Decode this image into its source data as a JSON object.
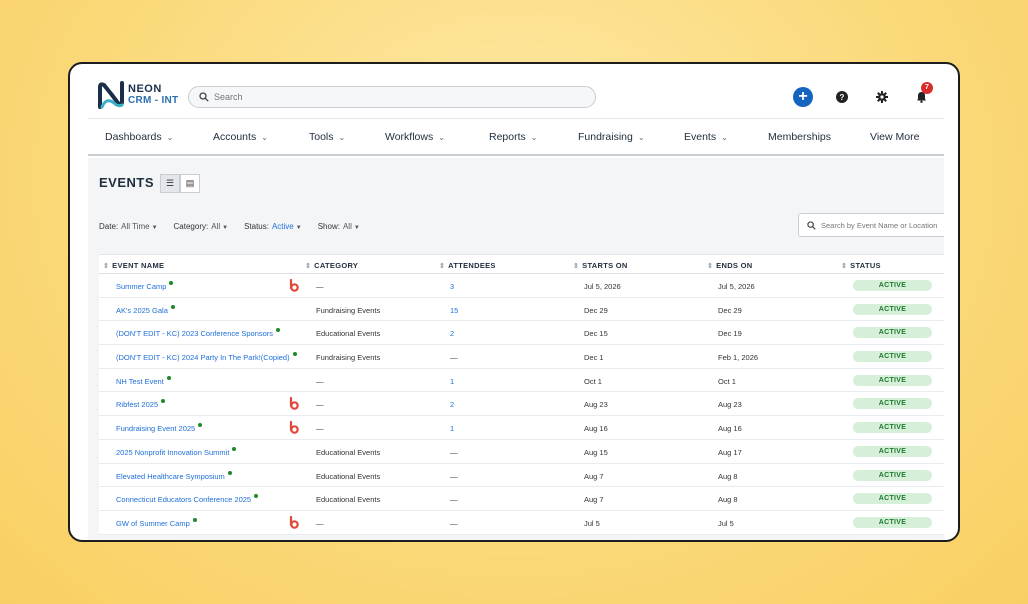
{
  "brand": {
    "line1": "NEON",
    "line2": "CRM - INT",
    "colors": {
      "navy": "#1b2f4b",
      "teal": "#3ab0c8",
      "blue": "#2a6fb0"
    }
  },
  "search": {
    "placeholder": "Search"
  },
  "header_icons": {
    "add": "plus-icon",
    "help": "help-icon",
    "settings": "gear-icon",
    "notifications": "bell-icon"
  },
  "notifications": {
    "count": "7"
  },
  "nav": [
    {
      "label": "Dashboards",
      "has_menu": true
    },
    {
      "label": "Accounts",
      "has_menu": true
    },
    {
      "label": "Tools",
      "has_menu": true
    },
    {
      "label": "Workflows",
      "has_menu": true
    },
    {
      "label": "Reports",
      "has_menu": true
    },
    {
      "label": "Fundraising",
      "has_menu": true
    },
    {
      "label": "Events",
      "has_menu": true
    },
    {
      "label": "Memberships",
      "has_menu": false
    },
    {
      "label": "View More",
      "has_menu": false
    }
  ],
  "page": {
    "title": "EVENTS"
  },
  "filters": {
    "date": {
      "label": "Date:",
      "value": "All Time"
    },
    "category": {
      "label": "Category:",
      "value": "All"
    },
    "status": {
      "label": "Status:",
      "value": "Active"
    },
    "show": {
      "label": "Show:",
      "value": "All"
    }
  },
  "table_search": {
    "placeholder": "Search by Event Name or Location"
  },
  "table": {
    "columns": [
      "EVENT NAME",
      "CATEGORY",
      "ATTENDEES",
      "STARTS ON",
      "ENDS ON",
      "STATUS"
    ],
    "rows": [
      {
        "name": "Summer Camp",
        "icon": true,
        "category": "—",
        "attendees": "3",
        "starts": "Jul 5, 2026",
        "ends": "Jul 5, 2026",
        "status": "ACTIVE"
      },
      {
        "name": "AK's 2025 Gala",
        "icon": false,
        "category": "Fundraising Events",
        "attendees": "15",
        "starts": "Dec 29",
        "ends": "Dec 29",
        "status": "ACTIVE"
      },
      {
        "name": "(DON'T EDIT - KC) 2023 Conference Sponsors",
        "icon": false,
        "category": "Educational Events",
        "attendees": "2",
        "starts": "Dec 15",
        "ends": "Dec 19",
        "status": "ACTIVE"
      },
      {
        "name": "(DON'T EDIT - KC) 2024 Party In The Park!(Copied)",
        "icon": false,
        "category": "Fundraising Events",
        "attendees": "—",
        "starts": "Dec 1",
        "ends": "Feb 1, 2026",
        "status": "ACTIVE"
      },
      {
        "name": "NH Test Event",
        "icon": false,
        "category": "—",
        "attendees": "1",
        "starts": "Oct 1",
        "ends": "Oct 1",
        "status": "ACTIVE"
      },
      {
        "name": "Ribfest 2025",
        "icon": true,
        "category": "—",
        "attendees": "2",
        "starts": "Aug 23",
        "ends": "Aug 23",
        "status": "ACTIVE"
      },
      {
        "name": "Fundraising Event 2025",
        "icon": true,
        "category": "—",
        "attendees": "1",
        "starts": "Aug 16",
        "ends": "Aug 16",
        "status": "ACTIVE"
      },
      {
        "name": "2025 Nonprofit Innovation Summit",
        "icon": false,
        "category": "Educational Events",
        "attendees": "—",
        "starts": "Aug 15",
        "ends": "Aug 17",
        "status": "ACTIVE"
      },
      {
        "name": "Elevated Healthcare Symposium",
        "icon": false,
        "category": "Educational Events",
        "attendees": "—",
        "starts": "Aug 7",
        "ends": "Aug 8",
        "status": "ACTIVE"
      },
      {
        "name": "Connecticut Educators Conference 2025",
        "icon": false,
        "category": "Educational Events",
        "attendees": "—",
        "starts": "Aug 7",
        "ends": "Aug 8",
        "status": "ACTIVE"
      },
      {
        "name": "GW of Summer Camp",
        "icon": true,
        "category": "—",
        "attendees": "—",
        "starts": "Jul 5",
        "ends": "Jul 5",
        "status": "ACTIVE"
      }
    ]
  }
}
